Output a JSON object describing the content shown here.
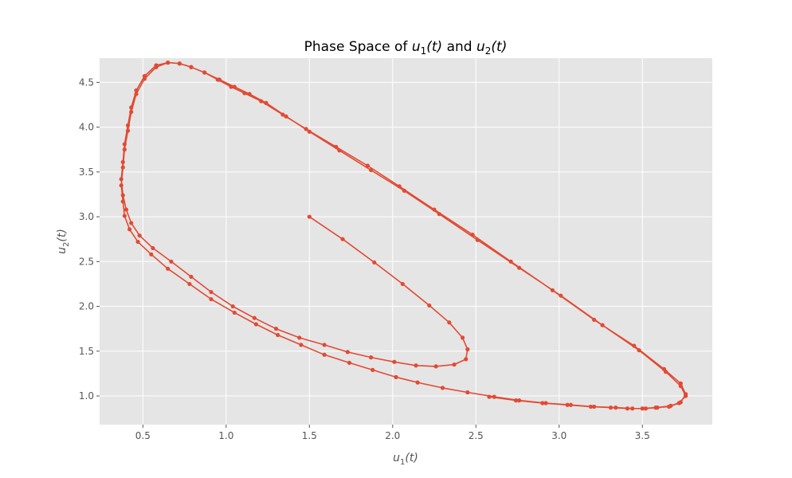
{
  "chart_data": {
    "type": "line",
    "title": "Phase Space of u₁(t) and u₂(t)",
    "title_parts": [
      "Phase Space of ",
      "u",
      "1",
      "(t)",
      " and ",
      "u",
      "2",
      "(t)"
    ],
    "xlabel": "u₁(t)",
    "xlabel_parts": [
      "u",
      "1",
      "(t)"
    ],
    "ylabel": "u₂(t)",
    "ylabel_parts": [
      "u",
      "2",
      "(t)"
    ],
    "xlim": [
      0.24,
      3.92
    ],
    "ylim": [
      0.68,
      4.77
    ],
    "xticks": [
      0.5,
      1.0,
      1.5,
      2.0,
      2.5,
      3.0,
      3.5
    ],
    "xtick_labels": [
      "0.5",
      "1.0",
      "1.5",
      "2.0",
      "2.5",
      "3.0",
      "3.5"
    ],
    "yticks": [
      1.0,
      1.5,
      2.0,
      2.5,
      3.0,
      3.5,
      4.0,
      4.5
    ],
    "ytick_labels": [
      "1.0",
      "1.5",
      "2.0",
      "2.5",
      "3.0",
      "3.5",
      "4.0",
      "4.5"
    ],
    "grid": true,
    "style": "ggplot",
    "line_color": "#e24a33",
    "background_color": "#e5e5e5",
    "grid_color": "#ffffff",
    "marker": "circle",
    "series": [
      {
        "x": [
          1.5,
          1.7,
          1.89,
          2.06,
          2.22,
          2.34,
          2.42,
          2.45,
          2.44,
          2.37,
          2.26,
          2.14,
          2.01,
          1.87,
          1.73,
          1.59,
          1.44,
          1.3,
          1.17,
          1.04,
          0.91,
          0.79,
          0.67,
          0.56,
          0.48,
          0.43,
          0.4,
          0.38,
          0.37,
          0.38,
          0.39,
          0.41,
          0.43,
          0.46,
          0.51,
          0.58,
          0.65,
          0.72,
          0.79,
          0.87,
          0.95,
          1.03,
          1.11,
          1.21,
          1.34,
          1.48,
          1.66,
          1.85,
          2.04,
          2.25,
          2.48,
          2.71,
          2.96,
          3.21,
          3.45,
          3.63,
          3.73,
          3.76,
          3.73,
          3.67,
          3.59,
          3.52,
          3.44,
          3.34,
          3.21,
          3.07,
          2.92,
          2.76,
          2.61,
          2.45,
          2.3,
          2.15,
          2.02,
          1.88,
          1.74,
          1.59,
          1.45,
          1.31,
          1.18,
          1.05,
          0.91,
          0.78,
          0.65,
          0.55,
          0.47,
          0.42,
          0.39,
          0.38,
          0.37,
          0.38,
          0.39,
          0.41,
          0.43,
          0.46,
          0.51,
          0.58,
          0.65,
          0.72,
          0.79,
          0.87,
          0.96,
          1.05,
          1.14,
          1.24,
          1.36,
          1.5,
          1.68,
          1.87,
          2.07,
          2.28,
          2.51,
          2.76,
          3.01,
          3.26,
          3.48,
          3.64,
          3.73,
          3.76,
          3.72,
          3.66,
          3.58,
          3.5,
          3.41,
          3.31,
          3.19,
          3.05,
          2.9,
          2.74,
          2.58
        ],
        "y": [
          3.0,
          2.75,
          2.49,
          2.25,
          2.01,
          1.82,
          1.65,
          1.52,
          1.41,
          1.35,
          1.33,
          1.34,
          1.38,
          1.43,
          1.49,
          1.57,
          1.65,
          1.75,
          1.87,
          2.0,
          2.16,
          2.33,
          2.5,
          2.65,
          2.79,
          2.93,
          3.08,
          3.24,
          3.42,
          3.61,
          3.81,
          4.02,
          4.22,
          4.41,
          4.57,
          4.69,
          4.72,
          4.71,
          4.67,
          4.61,
          4.53,
          4.45,
          4.38,
          4.29,
          4.14,
          3.98,
          3.78,
          3.57,
          3.34,
          3.08,
          2.8,
          2.5,
          2.18,
          1.85,
          1.56,
          1.3,
          1.14,
          1.02,
          0.93,
          0.89,
          0.87,
          0.86,
          0.86,
          0.87,
          0.88,
          0.9,
          0.92,
          0.95,
          0.99,
          1.04,
          1.09,
          1.15,
          1.21,
          1.29,
          1.37,
          1.46,
          1.57,
          1.68,
          1.8,
          1.93,
          2.08,
          2.25,
          2.42,
          2.58,
          2.72,
          2.86,
          3.01,
          3.17,
          3.35,
          3.55,
          3.75,
          3.96,
          4.17,
          4.37,
          4.54,
          4.67,
          4.72,
          4.71,
          4.67,
          4.61,
          4.53,
          4.45,
          4.37,
          4.27,
          4.12,
          3.95,
          3.74,
          3.52,
          3.29,
          3.03,
          2.74,
          2.43,
          2.12,
          1.79,
          1.51,
          1.27,
          1.11,
          1.0,
          0.92,
          0.88,
          0.87,
          0.86,
          0.86,
          0.87,
          0.88,
          0.9,
          0.92,
          0.95,
          0.99
        ]
      }
    ]
  }
}
